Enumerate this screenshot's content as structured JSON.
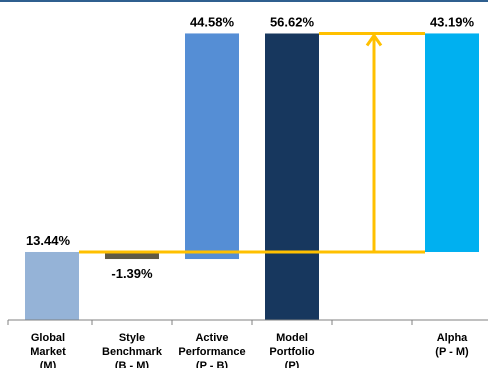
{
  "chart_data": {
    "type": "bar",
    "subtype": "waterfall",
    "categories": [
      [
        "Global",
        "Market",
        "(M)"
      ],
      [
        "Style",
        "Benchmark",
        "(B - M)"
      ],
      [
        "Active",
        "Performance",
        "(P - B)"
      ],
      [
        "Model",
        "Portfolio",
        "(P)"
      ],
      [],
      [
        "Alpha",
        "(P - M)"
      ]
    ],
    "bars": [
      {
        "base": 0,
        "value": 13.44,
        "label": "13.44%",
        "color": "#95b3d7"
      },
      {
        "base": 13.44,
        "value": -1.39,
        "label": "-1.39%",
        "color": "#5f5a46"
      },
      {
        "base": 12.05,
        "value": 44.58,
        "label": "44.58%",
        "color": "#558ed5"
      },
      {
        "base": 0,
        "value": 56.62,
        "label": "56.62%",
        "color": "#17375e"
      },
      null,
      {
        "base": 13.44,
        "value": 43.19,
        "label": "43.19%",
        "color": "#00b0f0"
      }
    ],
    "annotation": {
      "type": "arrow",
      "from": 13.44,
      "to": 56.62,
      "color": "#ffc000"
    },
    "reference_lines": [
      {
        "value": 13.44,
        "color": "#ffc000"
      },
      {
        "value": 56.62,
        "color": "#ffc000"
      }
    ],
    "ylim": [
      0,
      60
    ],
    "grid": false,
    "legend": "none"
  }
}
